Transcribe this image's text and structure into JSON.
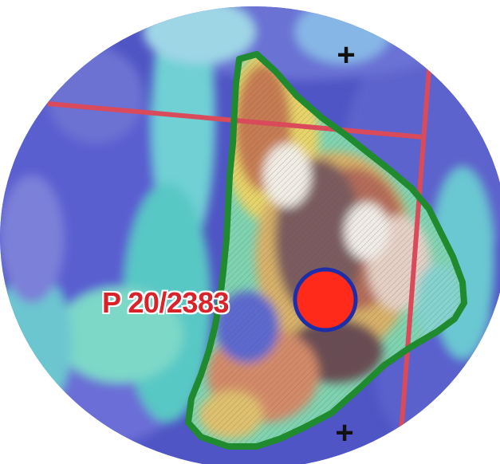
{
  "map": {
    "licence_label": "P 20/2383",
    "crosshair_glyph": "+",
    "colors": {
      "boundary_line": "#d94a5a",
      "licence_outline": "#1f8a2e",
      "location_marker_fill": "#ff2a1a",
      "location_marker_ring": "#1c2fa8",
      "label_text": "#d9232b",
      "background": "#ffffff"
    },
    "icons": {
      "location_marker": "red-dot-marker-icon",
      "grid_crosshair": "plus-crosshair-icon"
    }
  }
}
